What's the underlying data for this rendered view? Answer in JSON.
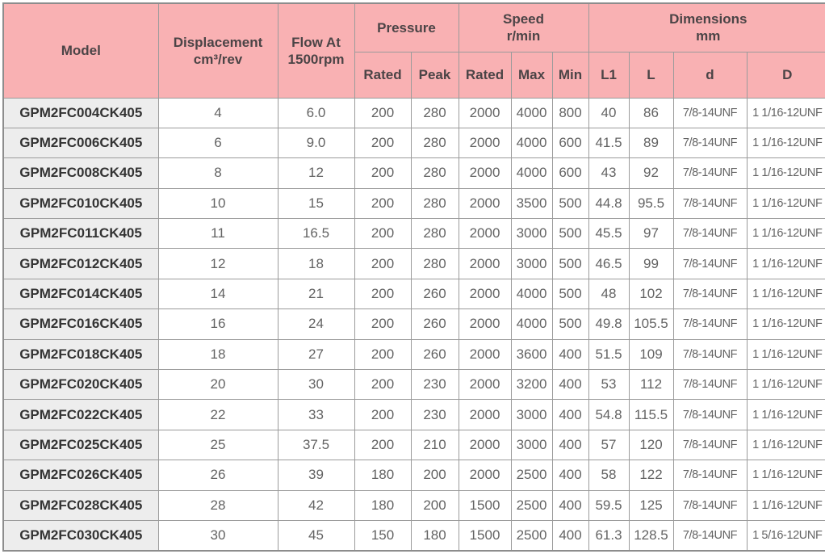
{
  "colors": {
    "header_bg": "#f9b1b3",
    "model_column_bg": "#ededed",
    "border": "#9b9b9b",
    "header_text": "#4b4446",
    "data_text": "#636363"
  },
  "chart_data": {
    "type": "table",
    "header": {
      "model": "Model",
      "displacement_line1": "Displacement",
      "displacement_line2": "cm³/rev",
      "flow_line1": "Flow At",
      "flow_line2": "1500rpm",
      "pressure_group": "Pressure",
      "pressure_rated": "Rated",
      "pressure_peak": "Peak",
      "speed_group_line1": "Speed",
      "speed_group_line2": "r/min",
      "speed_rated": "Rated",
      "speed_max": "Max",
      "speed_min": "Min",
      "dimensions_group_line1": "Dimensions",
      "dimensions_group_line2": "mm",
      "dim_l1": "L1",
      "dim_l": "L",
      "dim_d": "d",
      "dim_big_d": "D"
    },
    "rows": [
      [
        "GPM2FC004CK405",
        "4",
        "6.0",
        "200",
        "280",
        "2000",
        "4000",
        "800",
        "40",
        "86",
        "7/8-14UNF",
        "1 1/16-12UNF"
      ],
      [
        "GPM2FC006CK405",
        "6",
        "9.0",
        "200",
        "280",
        "2000",
        "4000",
        "600",
        "41.5",
        "89",
        "7/8-14UNF",
        "1 1/16-12UNF"
      ],
      [
        "GPM2FC008CK405",
        "8",
        "12",
        "200",
        "280",
        "2000",
        "4000",
        "600",
        "43",
        "92",
        "7/8-14UNF",
        "1 1/16-12UNF"
      ],
      [
        "GPM2FC010CK405",
        "10",
        "15",
        "200",
        "280",
        "2000",
        "3500",
        "500",
        "44.8",
        "95.5",
        "7/8-14UNF",
        "1 1/16-12UNF"
      ],
      [
        "GPM2FC011CK405",
        "11",
        "16.5",
        "200",
        "280",
        "2000",
        "3000",
        "500",
        "45.5",
        "97",
        "7/8-14UNF",
        "1 1/16-12UNF"
      ],
      [
        "GPM2FC012CK405",
        "12",
        "18",
        "200",
        "280",
        "2000",
        "3000",
        "500",
        "46.5",
        "99",
        "7/8-14UNF",
        "1 1/16-12UNF"
      ],
      [
        "GPM2FC014CK405",
        "14",
        "21",
        "200",
        "260",
        "2000",
        "4000",
        "500",
        "48",
        "102",
        "7/8-14UNF",
        "1 1/16-12UNF"
      ],
      [
        "GPM2FC016CK405",
        "16",
        "24",
        "200",
        "260",
        "2000",
        "4000",
        "500",
        "49.8",
        "105.5",
        "7/8-14UNF",
        "1 1/16-12UNF"
      ],
      [
        "GPM2FC018CK405",
        "18",
        "27",
        "200",
        "260",
        "2000",
        "3600",
        "400",
        "51.5",
        "109",
        "7/8-14UNF",
        "1 1/16-12UNF"
      ],
      [
        "GPM2FC020CK405",
        "20",
        "30",
        "200",
        "230",
        "2000",
        "3200",
        "400",
        "53",
        "112",
        "7/8-14UNF",
        "1 1/16-12UNF"
      ],
      [
        "GPM2FC022CK405",
        "22",
        "33",
        "200",
        "230",
        "2000",
        "3000",
        "400",
        "54.8",
        "115.5",
        "7/8-14UNF",
        "1 1/16-12UNF"
      ],
      [
        "GPM2FC025CK405",
        "25",
        "37.5",
        "200",
        "210",
        "2000",
        "3000",
        "400",
        "57",
        "120",
        "7/8-14UNF",
        "1 1/16-12UNF"
      ],
      [
        "GPM2FC026CK405",
        "26",
        "39",
        "180",
        "200",
        "2000",
        "2500",
        "400",
        "58",
        "122",
        "7/8-14UNF",
        "1 1/16-12UNF"
      ],
      [
        "GPM2FC028CK405",
        "28",
        "42",
        "180",
        "200",
        "1500",
        "2500",
        "400",
        "59.5",
        "125",
        "7/8-14UNF",
        "1 1/16-12UNF"
      ],
      [
        "GPM2FC030CK405",
        "30",
        "45",
        "150",
        "180",
        "1500",
        "2500",
        "400",
        "61.3",
        "128.5",
        "7/8-14UNF",
        "1 5/16-12UNF"
      ]
    ]
  }
}
